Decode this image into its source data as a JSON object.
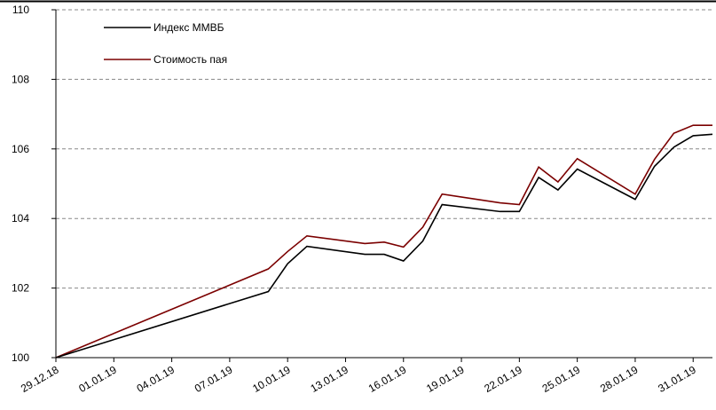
{
  "chart_data": {
    "type": "line",
    "x": [
      "29.12.18",
      "09.01.19",
      "10.01.19",
      "11.01.19",
      "14.01.19",
      "15.01.19",
      "16.01.19",
      "17.01.19",
      "18.01.19",
      "21.01.19",
      "22.01.19",
      "23.01.19",
      "24.01.19",
      "25.01.19",
      "28.01.19",
      "29.01.19",
      "30.01.19",
      "31.01.19",
      "01.02.19"
    ],
    "series": [
      {
        "name": "Индекс ММВБ",
        "color": "#000000",
        "values": [
          100,
          101.9,
          102.7,
          103.2,
          102.97,
          102.97,
          102.78,
          103.35,
          104.4,
          104.2,
          104.2,
          105.18,
          104.82,
          105.42,
          104.55,
          105.5,
          106.05,
          106.38,
          106.42
        ]
      },
      {
        "name": "Стоимость пая",
        "color": "#7b0000",
        "values": [
          100,
          102.55,
          103.05,
          103.5,
          103.28,
          103.32,
          103.18,
          103.75,
          104.7,
          104.45,
          104.4,
          105.48,
          105.05,
          105.72,
          104.7,
          105.7,
          106.45,
          106.68,
          106.68
        ]
      }
    ],
    "xlim": [
      "29.12.18",
      "01.02.19"
    ],
    "xticks": [
      "29.12.18",
      "01.01.19",
      "04.01.19",
      "07.01.19",
      "10.01.19",
      "13.01.19",
      "16.01.19",
      "19.01.19",
      "22.01.19",
      "25.01.19",
      "28.01.19",
      "31.01.19"
    ],
    "ylim": [
      100,
      110
    ],
    "yticks": [
      100,
      102,
      104,
      106,
      108,
      110
    ],
    "grid": true,
    "legend": "top-left"
  }
}
